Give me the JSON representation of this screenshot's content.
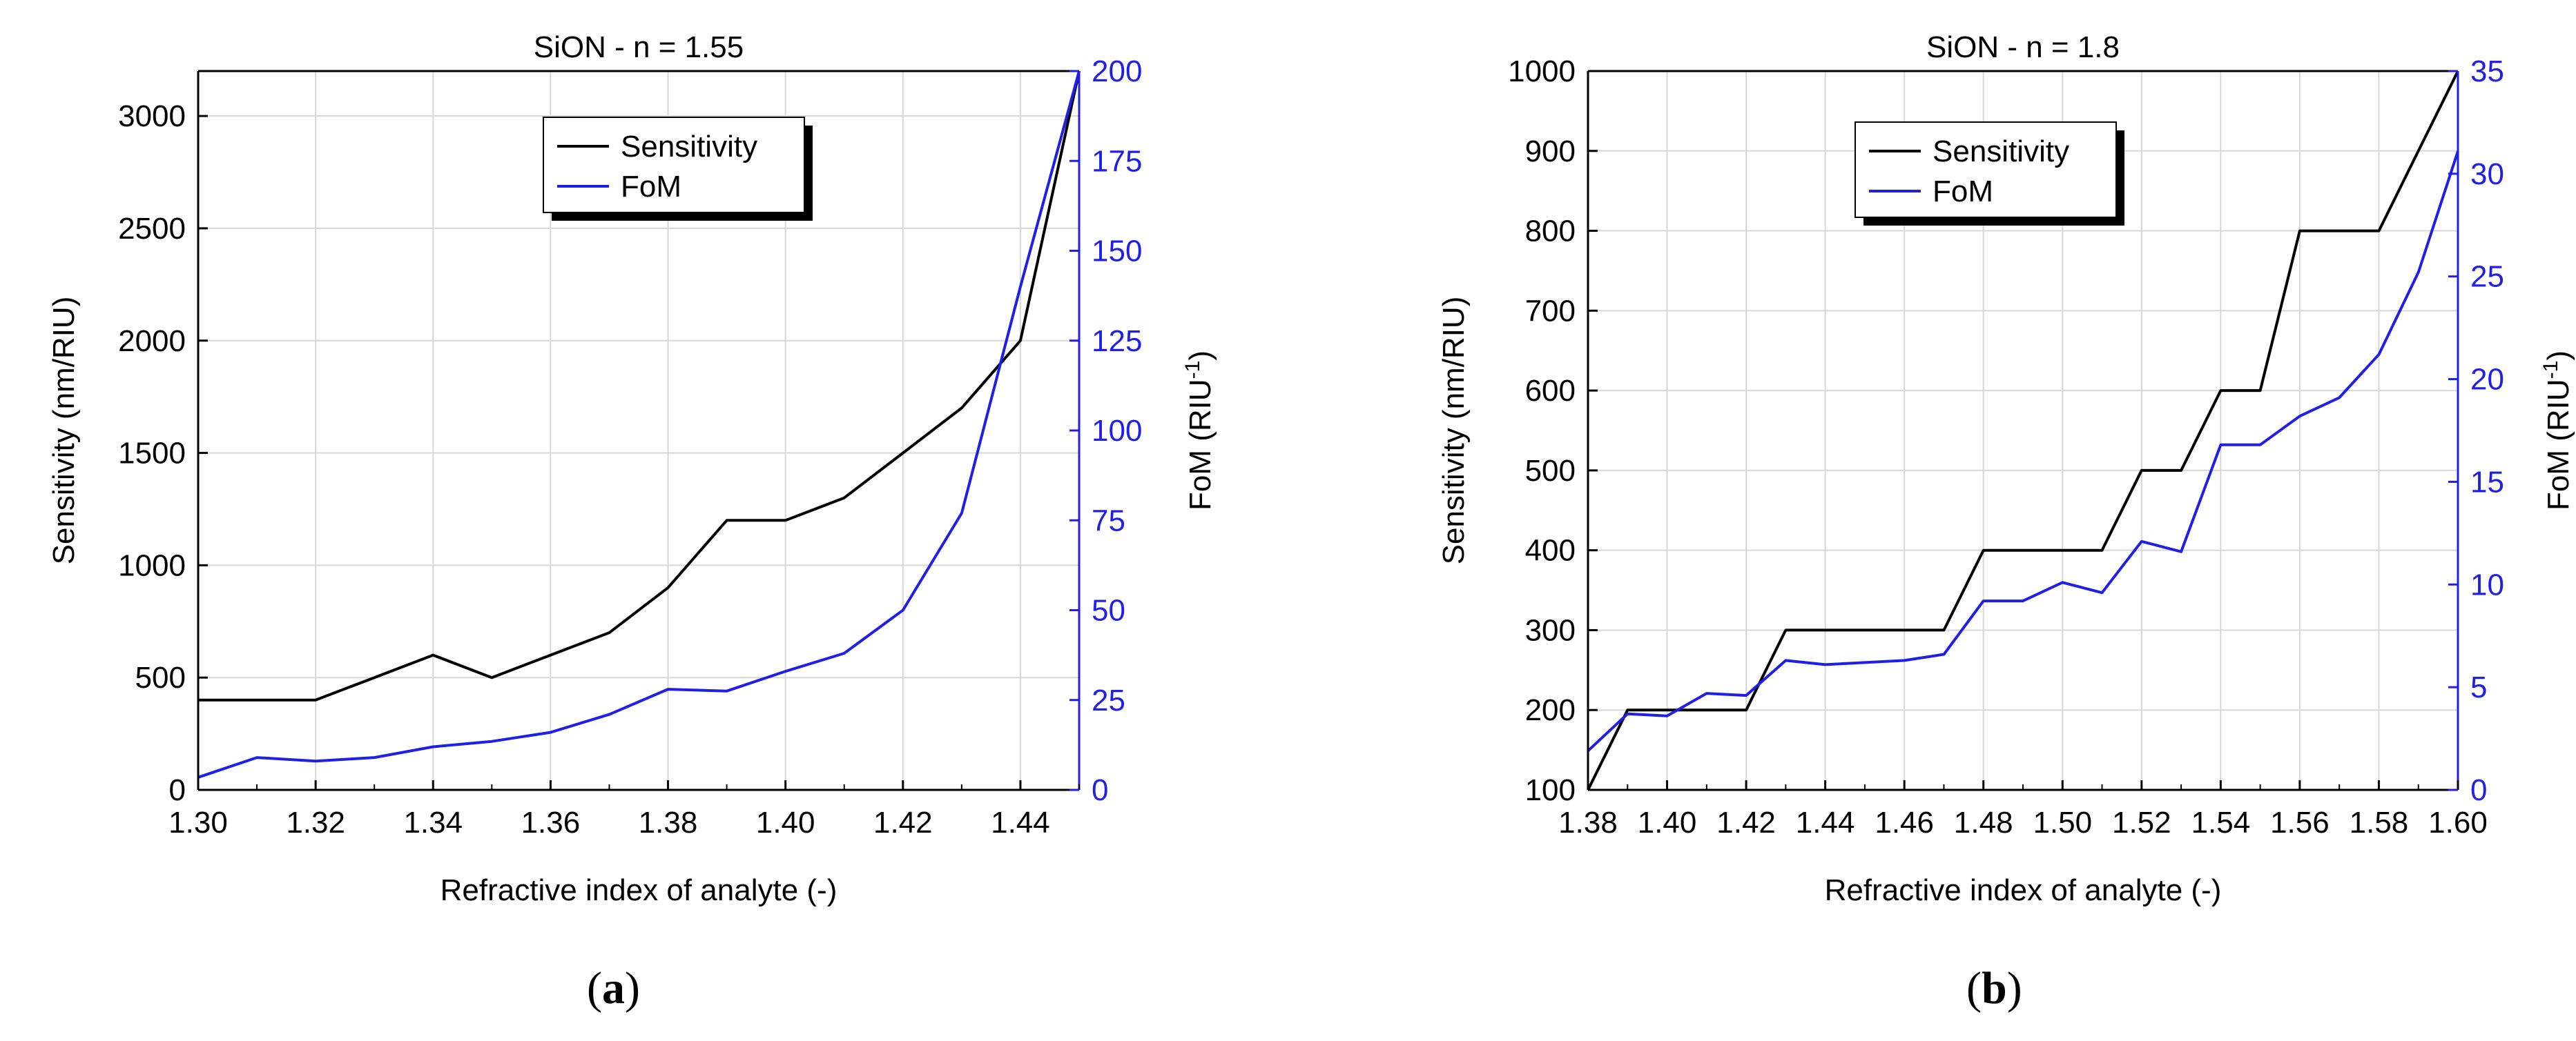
{
  "captions": [
    {
      "open": "(",
      "letter": "a",
      "close": ")"
    },
    {
      "open": "(",
      "letter": "b",
      "close": ")"
    }
  ],
  "colors": {
    "sensitivity": "#000000",
    "fom": "#1f1fe8",
    "grid": "#d7d7d7",
    "axis": "#000000"
  },
  "chart_data": [
    {
      "type": "line",
      "title": "SiON - n = 1.55",
      "xlabel": "Refractive index of analyte (-)",
      "ylabel": "Sensitivity (nm/RIU)",
      "y2label_main": "FoM (RIU",
      "y2label_sup": "-1",
      "y2label_end": ")",
      "xlim": [
        1.3,
        1.45
      ],
      "ylim": [
        0,
        3200
      ],
      "y2lim": [
        0,
        200
      ],
      "xticks": [
        "1.30",
        "1.32",
        "1.34",
        "1.36",
        "1.38",
        "1.40",
        "1.42",
        "1.44"
      ],
      "xtick_values": [
        1.3,
        1.32,
        1.34,
        1.36,
        1.38,
        1.4,
        1.42,
        1.44
      ],
      "yticks": [
        "0",
        "500",
        "1000",
        "1500",
        "2000",
        "2500",
        "3000"
      ],
      "ytick_values": [
        0,
        500,
        1000,
        1500,
        2000,
        2500,
        3000
      ],
      "y2ticks": [
        "0",
        "25",
        "50",
        "75",
        "100",
        "125",
        "150",
        "175",
        "200"
      ],
      "y2tick_values": [
        0,
        25,
        50,
        75,
        100,
        125,
        150,
        175,
        200
      ],
      "grid": true,
      "legend_position": "top-center",
      "series": [
        {
          "name": "Sensitivity",
          "axis": "left",
          "color": "#000000",
          "x": [
            1.3,
            1.31,
            1.32,
            1.33,
            1.34,
            1.35,
            1.36,
            1.37,
            1.38,
            1.39,
            1.4,
            1.41,
            1.42,
            1.43,
            1.44,
            1.45
          ],
          "y": [
            400,
            400,
            400,
            500,
            600,
            500,
            600,
            700,
            900,
            1200,
            1200,
            1300,
            1500,
            1700,
            2000,
            3200
          ]
        },
        {
          "name": "FoM",
          "axis": "right",
          "color": "#1f1fe8",
          "x": [
            1.3,
            1.31,
            1.32,
            1.33,
            1.34,
            1.35,
            1.36,
            1.37,
            1.38,
            1.39,
            1.4,
            1.41,
            1.42,
            1.43,
            1.44,
            1.45
          ],
          "y": [
            3.5,
            9,
            8,
            9,
            12,
            13.5,
            16,
            21,
            28,
            27.5,
            33,
            38,
            50,
            77,
            140,
            200
          ]
        }
      ]
    },
    {
      "type": "line",
      "title": "SiON - n = 1.8",
      "xlabel": "Refractive index of analyte (-)",
      "ylabel": "Sensitivity (nm/RIU)",
      "y2label_main": "FoM (RIU",
      "y2label_sup": "-1",
      "y2label_end": ")",
      "xlim": [
        1.38,
        1.6
      ],
      "ylim": [
        100,
        1000
      ],
      "y2lim": [
        0,
        35
      ],
      "xticks": [
        "1.38",
        "1.40",
        "1.42",
        "1.44",
        "1.46",
        "1.48",
        "1.50",
        "1.52",
        "1.54",
        "1.56",
        "1.58",
        "1.60"
      ],
      "xtick_values": [
        1.38,
        1.4,
        1.42,
        1.44,
        1.46,
        1.48,
        1.5,
        1.52,
        1.54,
        1.56,
        1.58,
        1.6
      ],
      "yticks": [
        "100",
        "200",
        "300",
        "400",
        "500",
        "600",
        "700",
        "800",
        "900",
        "1000"
      ],
      "ytick_values": [
        100,
        200,
        300,
        400,
        500,
        600,
        700,
        800,
        900,
        1000
      ],
      "y2ticks": [
        "0",
        "5",
        "10",
        "15",
        "20",
        "25",
        "30",
        "35"
      ],
      "y2tick_values": [
        0,
        5,
        10,
        15,
        20,
        25,
        30,
        35
      ],
      "grid": true,
      "legend_position": "top-left",
      "series": [
        {
          "name": "Sensitivity",
          "axis": "left",
          "color": "#000000",
          "x": [
            1.38,
            1.39,
            1.4,
            1.41,
            1.42,
            1.43,
            1.44,
            1.45,
            1.46,
            1.47,
            1.48,
            1.49,
            1.5,
            1.51,
            1.52,
            1.53,
            1.54,
            1.55,
            1.56,
            1.57,
            1.58,
            1.59,
            1.6
          ],
          "y": [
            100,
            200,
            200,
            200,
            200,
            300,
            300,
            300,
            300,
            300,
            400,
            400,
            400,
            400,
            500,
            500,
            600,
            600,
            800,
            800,
            800,
            900,
            1000
          ]
        },
        {
          "name": "FoM",
          "axis": "right",
          "color": "#1f1fe8",
          "x": [
            1.38,
            1.39,
            1.4,
            1.41,
            1.42,
            1.43,
            1.44,
            1.45,
            1.46,
            1.47,
            1.48,
            1.49,
            1.5,
            1.51,
            1.52,
            1.53,
            1.54,
            1.55,
            1.56,
            1.57,
            1.58,
            1.59,
            1.6
          ],
          "y": [
            1.9,
            3.7,
            3.6,
            4.7,
            4.6,
            6.3,
            6.1,
            6.2,
            6.3,
            6.6,
            9.2,
            9.2,
            10.1,
            9.6,
            12.1,
            11.6,
            16.8,
            16.8,
            18.2,
            19.1,
            21.2,
            25.2,
            31.1
          ]
        }
      ]
    }
  ]
}
